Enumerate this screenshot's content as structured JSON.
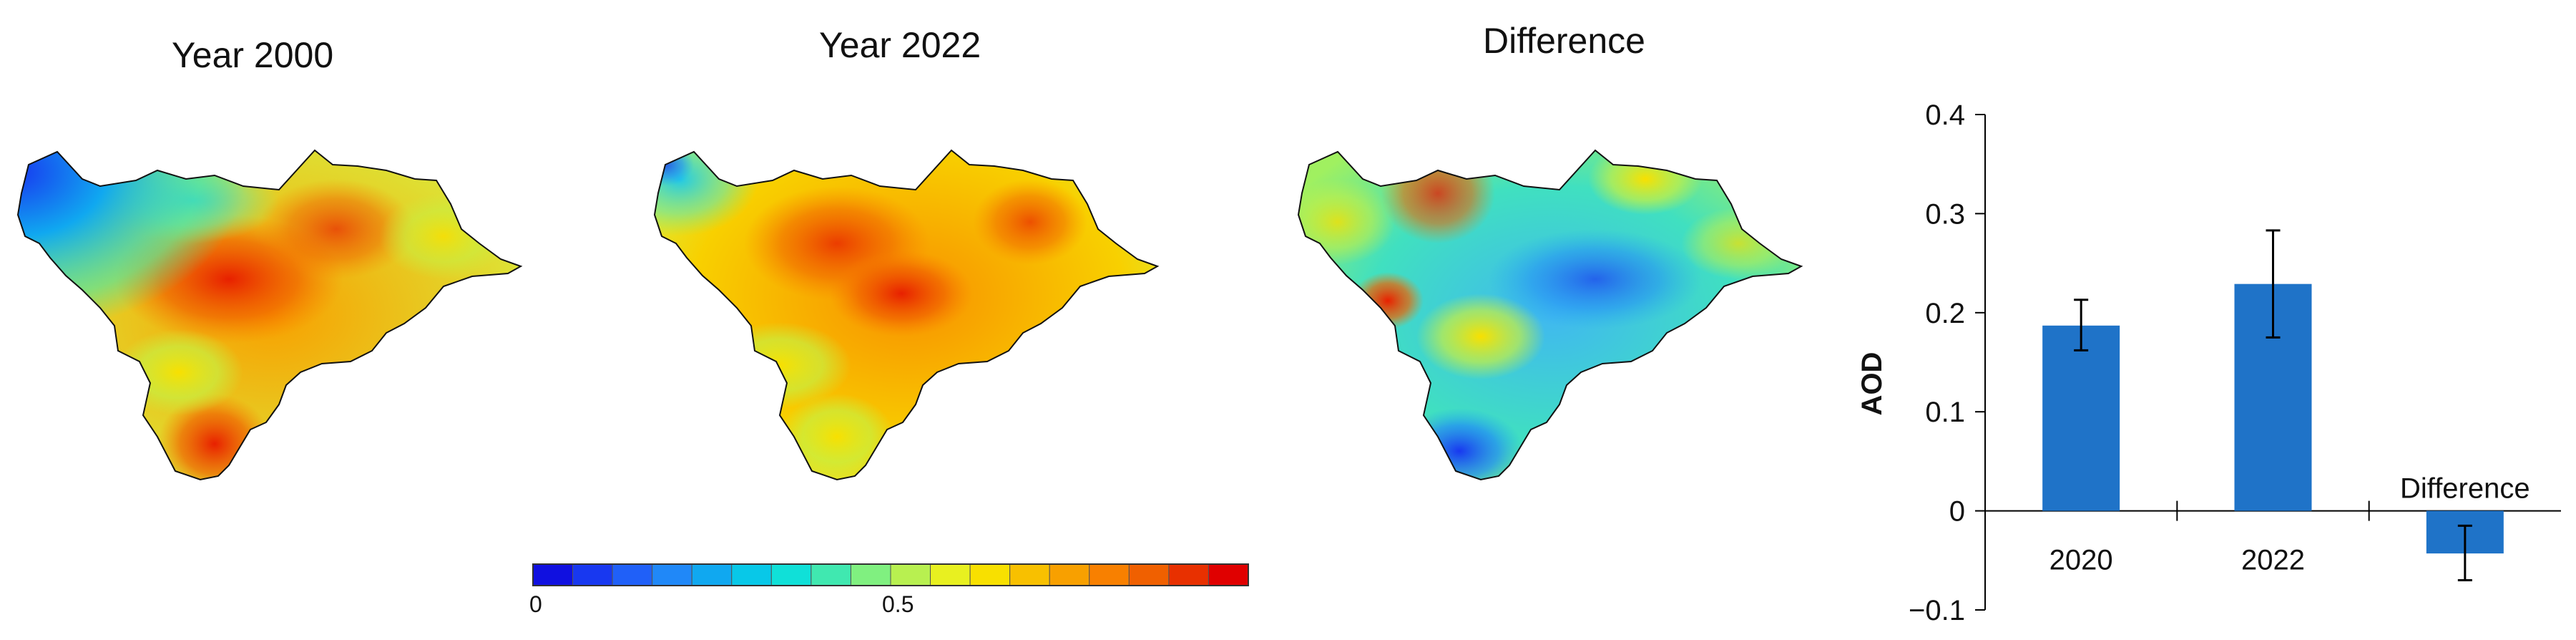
{
  "maps": [
    {
      "id": "y2000",
      "title": "Year 2000"
    },
    {
      "id": "y2022",
      "title": "Year 2022"
    },
    {
      "id": "diff",
      "title": "Difference"
    }
  ],
  "colorbar": {
    "labels": [
      "0",
      "0.5"
    ],
    "colors": [
      "#1010e0",
      "#1838f0",
      "#2060f8",
      "#2088f8",
      "#10a8f0",
      "#08c8e8",
      "#10e0d8",
      "#40e8b0",
      "#80f080",
      "#b8f050",
      "#e8f020",
      "#f8e000",
      "#f8c000",
      "#f8a000",
      "#f88000",
      "#f06000",
      "#e83000",
      "#e00000"
    ]
  },
  "chart_data": {
    "type": "bar",
    "categories": [
      "2020",
      "2022",
      "Difference"
    ],
    "values": [
      0.187,
      0.229,
      -0.043
    ],
    "error_low": [
      0.162,
      0.175,
      -0.07
    ],
    "error_high": [
      0.213,
      0.283,
      -0.015
    ],
    "ylabel": "AOD",
    "ylim": [
      -0.1,
      0.4
    ],
    "yticks": [
      "0.4",
      "0.3",
      "0.2",
      "0.1",
      "0",
      "−0.1"
    ],
    "bar_color": "#1f73c8",
    "grid": false
  }
}
